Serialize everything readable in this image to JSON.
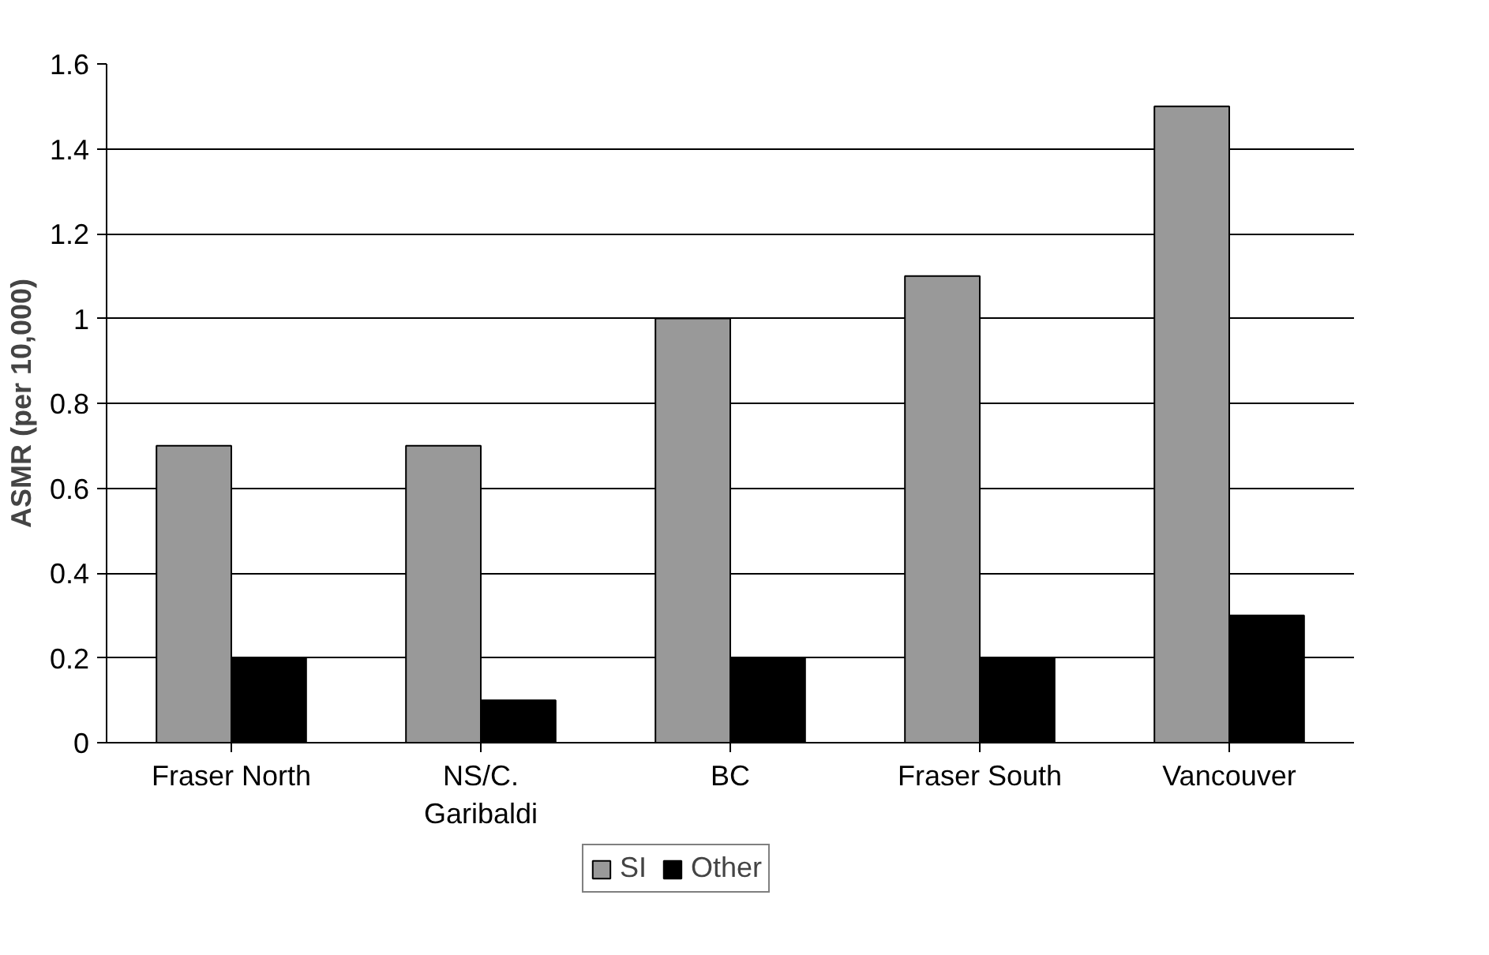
{
  "chart_data": {
    "type": "bar",
    "ylabel": "ASMR (per 10,000)",
    "categories": [
      "Fraser North",
      "NS/C.\nGaribaldi",
      "BC",
      "Fraser South",
      "Vancouver"
    ],
    "series": [
      {
        "name": "SI",
        "color": "#999999",
        "values": [
          0.7,
          0.7,
          1.0,
          1.1,
          1.5
        ]
      },
      {
        "name": "Other",
        "color": "#000000",
        "values": [
          0.2,
          0.1,
          0.2,
          0.2,
          0.3
        ]
      }
    ],
    "ylim": [
      0,
      1.6
    ],
    "yticks": [
      0,
      {
        "value": 0.2,
        "label": "0.2"
      },
      {
        "value": 0.4,
        "label": "0.4"
      },
      {
        "value": 0.6,
        "label": "0.6"
      },
      {
        "value": 0.8,
        "label": "0.8"
      },
      1,
      {
        "value": 1.2,
        "label": "1.2"
      },
      {
        "value": 1.4,
        "label": "1.4"
      },
      {
        "value": 1.6,
        "label": "1.6"
      }
    ],
    "grid": "y",
    "legend": "bottom"
  }
}
